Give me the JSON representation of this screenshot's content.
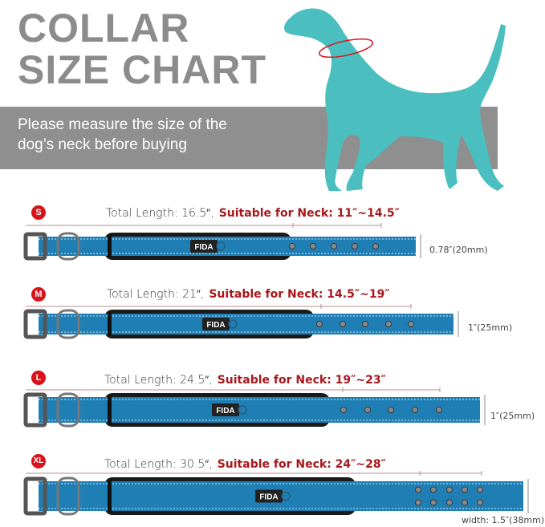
{
  "header": {
    "title_line1": "COLLAR",
    "title_line2": "SIZE CHART",
    "instruction_line1": "Please measure the size of the",
    "instruction_line2": "dog’s neck before buying"
  },
  "colors": {
    "title_gray": "#8c8c8c",
    "band_gray": "#8f8f8f",
    "dog_teal": "#4bbfbf",
    "accent_red": "#d7141a",
    "neck_text_red": "#a8171c",
    "collar_blue": "#1f7fb5"
  },
  "brand_tag": "FIDA",
  "sizes": [
    {
      "badge": "S",
      "total_length": "Total Length: 16.5″,",
      "neck": "Suitable for Neck: 11″~14.5″",
      "width": "0.78″(20mm)",
      "holes_rows": 1
    },
    {
      "badge": "M",
      "total_length": "Total Length: 21″,",
      "neck": "Suitable for Neck: 14.5″~19″",
      "width": "1″(25mm)",
      "holes_rows": 1
    },
    {
      "badge": "L",
      "total_length": "Total Length: 24.5″,",
      "neck": "Suitable for Neck: 19″~23″",
      "width": "1″(25mm)",
      "holes_rows": 1
    },
    {
      "badge": "XL",
      "total_length": "Total Length: 30.5″,",
      "neck": "Suitable for Neck: 24″~28″",
      "width": "width: 1.5″(38mm)",
      "holes_rows": 2
    }
  ]
}
